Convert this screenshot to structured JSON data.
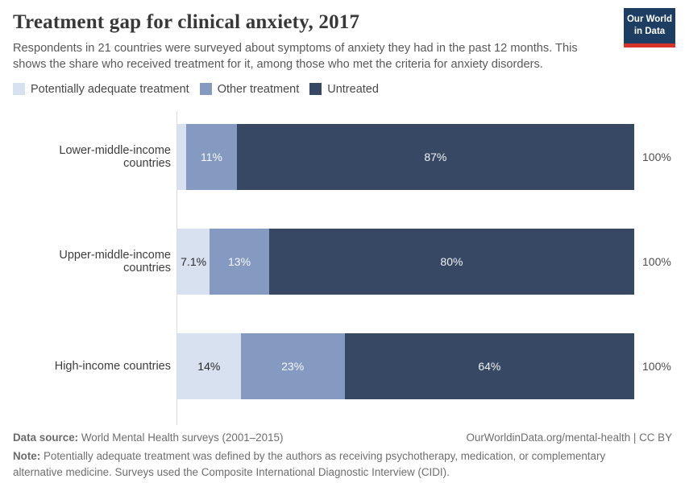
{
  "header": {
    "title": "Treatment gap for clinical anxiety, 2017",
    "subtitle": "Respondents in 21 countries were surveyed about symptoms of anxiety they had in the past 12 months. This shows the share who received treatment for it, among those who met the criteria for anxiety disorders.",
    "logo": {
      "line1": "Our World",
      "line2": "in Data",
      "bg_color": "#1d3d63",
      "accent_color": "#d7352a"
    }
  },
  "chart_data": {
    "type": "bar",
    "orientation": "horizontal",
    "stacked": true,
    "xlim": [
      0,
      100
    ],
    "grid": false,
    "legend_position": "top",
    "categories": [
      "Lower-middle-income countries",
      "Upper-middle-income countries",
      "High-income countries"
    ],
    "series": [
      {
        "name": "Potentially adequate treatment",
        "color": "#d7e1f0",
        "label_style": "dark",
        "values": [
          2,
          7.1,
          14
        ],
        "labels": [
          "",
          "7.1%",
          "14%"
        ]
      },
      {
        "name": "Other treatment",
        "color": "#859ac0",
        "label_style": "light",
        "values": [
          11,
          13,
          23
        ],
        "labels": [
          "11%",
          "13%",
          "23%"
        ]
      },
      {
        "name": "Untreated",
        "color": "#364864",
        "label_style": "light",
        "values": [
          87,
          80,
          64
        ],
        "labels": [
          "87%",
          "80%",
          "64%"
        ]
      }
    ],
    "totals": [
      "100%",
      "100%",
      "100%"
    ]
  },
  "footer": {
    "data_source_label": "Data source:",
    "data_source_text": " World Mental Health surveys (2001–2015)",
    "link_text": "OurWorldinData.org/mental-health | CC BY",
    "note_label": "Note:",
    "note_text": " Potentially adequate treatment was defined by the authors as receiving psychotherapy, medication, or complementary alternative medicine. Surveys used the Composite International Diagnostic Interview (CIDI)."
  }
}
